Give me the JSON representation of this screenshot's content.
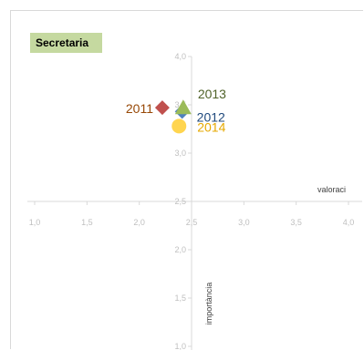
{
  "chart_data": {
    "type": "scatter",
    "title": "Secretaria",
    "xlabel": "valoraci",
    "ylabel": "importància",
    "xlim": [
      1.0,
      4.0
    ],
    "ylim": [
      1.0,
      4.0
    ],
    "x_ticks": [
      "1,0",
      "1,5",
      "2,0",
      "2,5",
      "3,0",
      "3,5",
      "4,0"
    ],
    "y_ticks": [
      "1,0",
      "1,5",
      "2,0",
      "2,5",
      "3,0",
      "3,5",
      "4,0"
    ],
    "axis_crossing": {
      "x": 2.5,
      "y": 2.5
    },
    "series": [
      {
        "name": "2011",
        "x": 2.22,
        "y": 3.47,
        "marker": "diamond",
        "color": "#c0504d",
        "label_color": "#974806"
      },
      {
        "name": "2012",
        "x": 2.41,
        "y": 3.43,
        "marker": "diamond",
        "color": "#4f81bd",
        "label_color": "#1f497d"
      },
      {
        "name": "2013",
        "x": 2.42,
        "y": 3.46,
        "marker": "triangle",
        "color": "#9bbb59",
        "label_color": "#4f6228"
      },
      {
        "name": "2014",
        "x": 2.38,
        "y": 3.28,
        "marker": "circle",
        "color": "#ffd54f",
        "label_color": "#e6a800"
      }
    ]
  }
}
